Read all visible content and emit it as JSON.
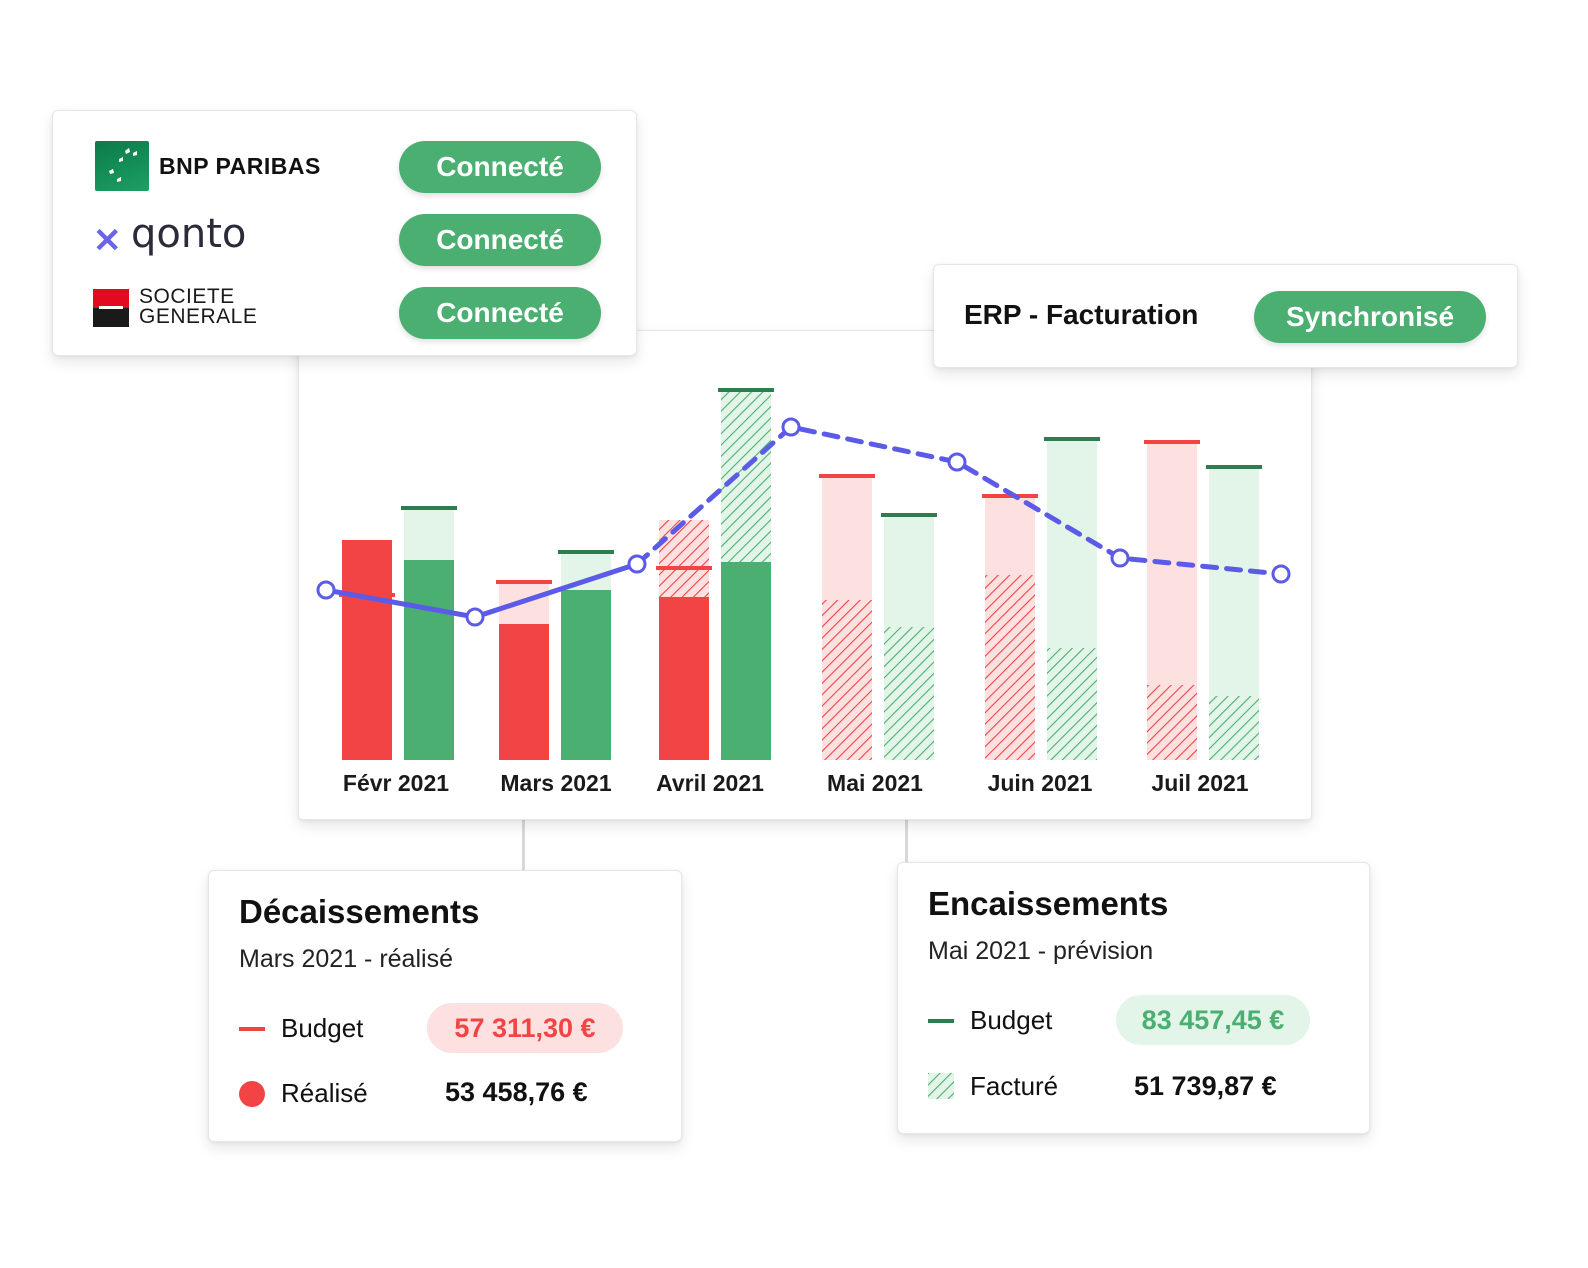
{
  "banks": [
    {
      "name": "BNP PARIBAS",
      "status": "Connecté"
    },
    {
      "name": "qonto",
      "status": "Connecté"
    },
    {
      "name_line1": "SOCIETE",
      "name_line2": "GENERALE",
      "status": "Connecté"
    }
  ],
  "erp": {
    "title": "ERP - Facturation",
    "status": "Synchronisé"
  },
  "colors": {
    "red": "#f24444",
    "red_light": "#fde0e0",
    "green": "#4caf72",
    "green_light": "#e2f5e8",
    "line": "#5b5be8"
  },
  "chart_data": {
    "type": "bar",
    "categories": [
      "Févr 2021",
      "Mars 2021",
      "Avril 2021",
      "Mai 2021",
      "Juin 2021",
      "Juil 2021"
    ],
    "series": [
      {
        "kind": "decaissements",
        "realise": [
          220,
          136,
          163,
          0,
          0,
          0
        ],
        "facture": [
          0,
          0,
          77,
          160,
          185,
          75
        ],
        "budget": [
          165,
          178,
          192,
          284,
          264,
          318
        ]
      },
      {
        "kind": "encaissements",
        "realise": [
          200,
          170,
          198,
          0,
          0,
          0
        ],
        "facture": [
          0,
          0,
          174,
          133,
          112,
          64
        ],
        "budget": [
          252,
          208,
          370,
          245,
          321,
          293
        ]
      }
    ],
    "tresorerie": [
      170,
      143,
      196,
      333,
      298,
      202,
      186
    ],
    "tresorerie_realised_points": 3
  },
  "decaissements": {
    "title": "Décaissements",
    "subtitle": "Mars 2021 - réalisé",
    "row1_label": "Budget",
    "row1_value": "57 311,30 €",
    "row2_label": "Réalisé",
    "row2_value": "53 458,76 €"
  },
  "encaissements": {
    "title": "Encaissements",
    "subtitle": "Mai 2021 - prévision",
    "row1_label": "Budget",
    "row1_value": "83 457,45 €",
    "row2_label": "Facturé",
    "row2_value": "51 739,87 €"
  }
}
